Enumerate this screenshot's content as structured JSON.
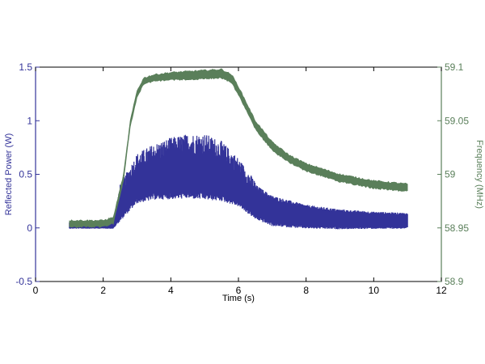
{
  "chart_data": {
    "type": "line",
    "title": "",
    "xlabel": "Time (s)",
    "ylabel_left": "Reflected Power (W)",
    "ylabel_right": "Frequency (MHz)",
    "xlim": [
      0,
      12
    ],
    "ylim_left": [
      -0.5,
      1.5
    ],
    "ylim_right": [
      58.9,
      59.1
    ],
    "x_ticks": [
      "0",
      "2",
      "4",
      "6",
      "8",
      "10",
      "12"
    ],
    "y_left_ticks": [
      "-0.5",
      "0",
      "0.5",
      "1",
      "1.5"
    ],
    "y_right_ticks": [
      "58.9",
      "58.95",
      "59",
      "59.05",
      "59.1"
    ],
    "grid": false,
    "colors": {
      "power": "#333399",
      "frequency": "#5a7f5a",
      "axis": "#000000"
    },
    "series": [
      {
        "axis": "left",
        "x": [
          1.0,
          2.0,
          2.3,
          2.5,
          3.0,
          3.5,
          4.0,
          4.5,
          5.0,
          5.5,
          6.0,
          6.5,
          7.0,
          8.0,
          9.0,
          10.0,
          11.0
        ],
        "upper": [
          0.05,
          0.05,
          0.05,
          0.35,
          0.62,
          0.7,
          0.75,
          0.78,
          0.78,
          0.72,
          0.58,
          0.38,
          0.28,
          0.2,
          0.16,
          0.14,
          0.13
        ],
        "lower": [
          0.0,
          0.0,
          0.0,
          0.1,
          0.28,
          0.32,
          0.33,
          0.34,
          0.33,
          0.31,
          0.25,
          0.12,
          0.05,
          0.02,
          0.01,
          0.01,
          0.01
        ]
      },
      {
        "axis": "right",
        "x": [
          1.0,
          2.0,
          2.3,
          2.6,
          2.8,
          3.0,
          3.2,
          3.5,
          4.0,
          5.0,
          5.5,
          5.8,
          6.0,
          6.5,
          7.0,
          7.5,
          8.0,
          9.0,
          10.0,
          11.0
        ],
        "upper": [
          58.957,
          58.957,
          58.96,
          59.0,
          59.05,
          59.078,
          59.09,
          59.093,
          59.095,
          59.097,
          59.098,
          59.093,
          59.082,
          59.05,
          59.03,
          59.018,
          59.01,
          59.0,
          58.994,
          58.991
        ],
        "lower": [
          58.951,
          58.951,
          58.954,
          58.994,
          59.044,
          59.072,
          59.084,
          59.087,
          59.088,
          59.089,
          59.09,
          59.085,
          59.074,
          59.042,
          59.022,
          59.011,
          59.003,
          58.993,
          58.987,
          58.984
        ]
      }
    ]
  }
}
